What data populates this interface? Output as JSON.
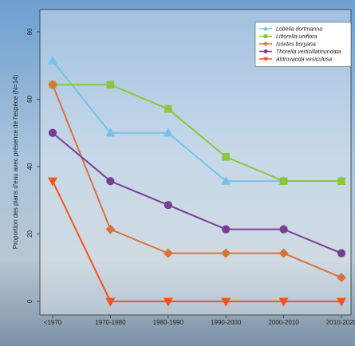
{
  "chart_data": {
    "type": "line",
    "y_label": "Proportion des plans d'eau avec présence de l'espèce (N=14)",
    "categories": [
      "<1970",
      "1970-1980",
      "1980-1990",
      "1990-2000",
      "2000-2010",
      "2010-2020"
    ],
    "series": [
      {
        "name": "Lobelia dortmanna",
        "color": "#74c2ea",
        "marker": "triangle-up",
        "values": [
          71.4,
          50,
          50,
          35.7,
          35.7,
          35.7
        ]
      },
      {
        "name": "Littorella uniflora",
        "color": "#8cc63e",
        "marker": "square",
        "values": [
          64.3,
          64.3,
          57.1,
          42.9,
          35.7,
          35.7
        ]
      },
      {
        "name": "Isoetes boryana",
        "color": "#d9733a",
        "marker": "diamond",
        "values": [
          64.3,
          21.4,
          14.3,
          14.3,
          14.3,
          7.1
        ]
      },
      {
        "name": "Thorella verticillatinundata",
        "color": "#7a3d96",
        "marker": "circle",
        "values": [
          50,
          35.7,
          28.6,
          21.4,
          21.4,
          14.3
        ]
      },
      {
        "name": "Aldrovanda vesiculosa",
        "color": "#f2541b",
        "marker": "triangle-down",
        "values": [
          35.7,
          0,
          0,
          0,
          0,
          0
        ]
      }
    ],
    "ylim": [
      -4,
      86.6
    ],
    "yticks": [
      0,
      20,
      40,
      60,
      80
    ],
    "legend": "top-right"
  }
}
